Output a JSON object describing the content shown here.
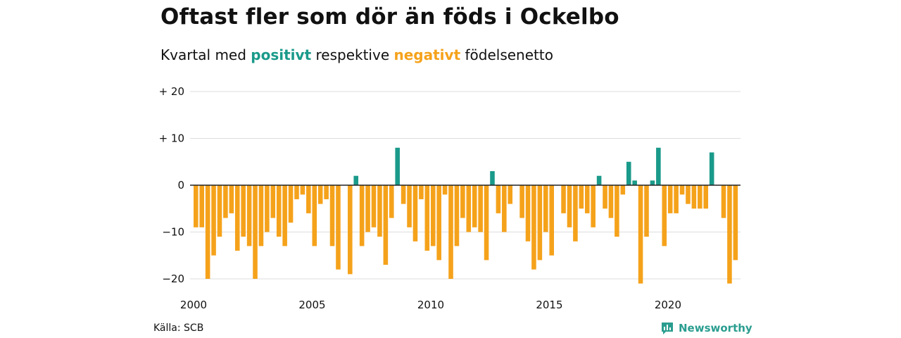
{
  "header": {
    "title": "Oftast fler som dör än föds i Ockelbo",
    "subtitle_prefix": "Kvartal med",
    "subtitle_positive": "positivt",
    "subtitle_middle": "respektive",
    "subtitle_negative": "negativt",
    "subtitle_suffix": "födelsenetto"
  },
  "footer": {
    "source": "Källa: SCB",
    "brand": "Newsworthy",
    "brand_icon": "bar-chart-logo-icon"
  },
  "colors": {
    "positive": "#1a9a8a",
    "negative": "#f5a21b",
    "grid": "#dddddd",
    "zero_line": "#222222"
  },
  "chart_data": {
    "type": "bar",
    "x_start_year": 2000,
    "periods_per_year": 4,
    "values": [
      -9,
      -9,
      -20,
      -15,
      -11,
      -7,
      -6,
      -14,
      -11,
      -13,
      -20,
      -13,
      -10,
      -7,
      -11,
      -13,
      -8,
      -3,
      -2,
      -6,
      -13,
      -4,
      -3,
      -13,
      -18,
      0,
      -19,
      2,
      -13,
      -10,
      -9,
      -11,
      -17,
      -7,
      8,
      -4,
      -9,
      -12,
      -3,
      -14,
      -13,
      -16,
      -2,
      -20,
      -13,
      -7,
      -10,
      -9,
      -10,
      -16,
      3,
      -6,
      -10,
      -4,
      0,
      -7,
      -12,
      -18,
      -16,
      -10,
      -15,
      0,
      -6,
      -9,
      -12,
      -5,
      -6,
      -9,
      2,
      -5,
      -7,
      -11,
      -2,
      5,
      1,
      -21,
      -11,
      1,
      8,
      -13,
      -6,
      -6,
      -2,
      -4,
      -5,
      -5,
      -5,
      7,
      0,
      -7,
      -21,
      -16
    ],
    "x_ticks": [
      "2000",
      "2005",
      "2010",
      "2015",
      "2020"
    ],
    "y_ticks": [
      {
        "value": 20,
        "label": "+ 20"
      },
      {
        "value": 10,
        "label": "+ 10"
      },
      {
        "value": 0,
        "label": "0"
      },
      {
        "value": -10,
        "label": "−10"
      },
      {
        "value": -20,
        "label": "−20"
      }
    ],
    "ylim": [
      -21,
      20
    ],
    "grid": true
  }
}
